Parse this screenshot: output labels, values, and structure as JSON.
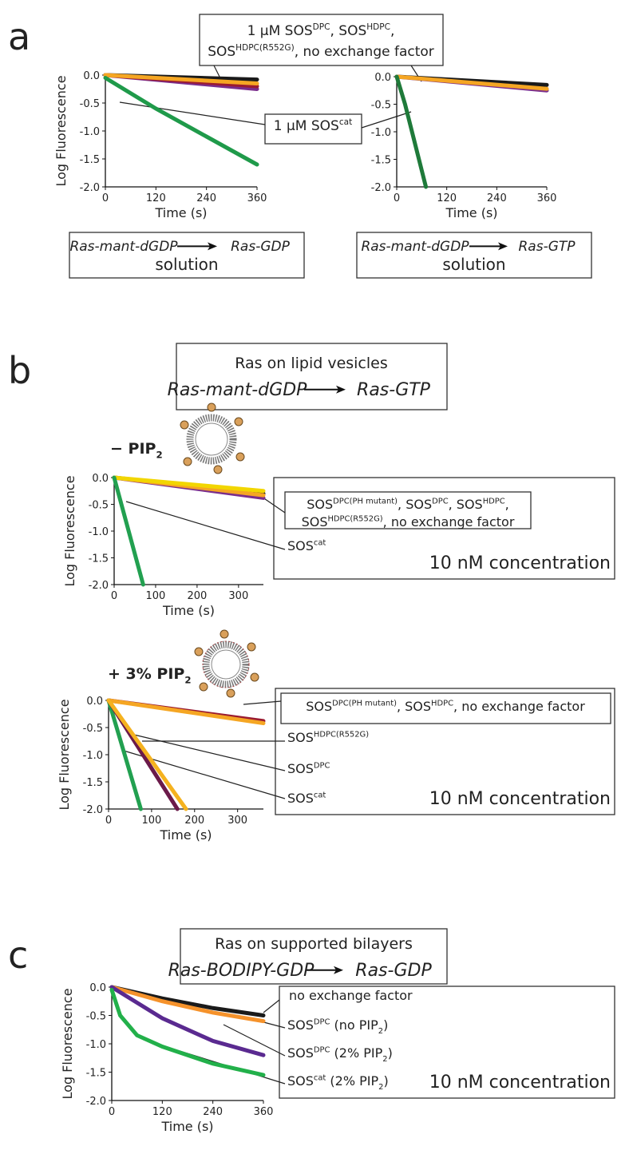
{
  "panel_labels": [
    "a",
    "b",
    "c"
  ],
  "reactions": [
    {
      "from": "Ras-mant-dGDP",
      "to": "Ras-GDP",
      "caption": "solution"
    },
    {
      "from": "Ras-mant-dGDP",
      "to": "Ras-GTP",
      "caption": "solution"
    },
    {
      "title": "Ras on lipid vesicles",
      "from": "Ras-mant-dGDP",
      "to": "Ras-GTP"
    },
    {
      "title": "Ras on supported bilayers",
      "from": "Ras-BODIPY-GDP",
      "to": "Ras-GDP"
    }
  ],
  "conditions": [
    [
      "− PIP",
      {
        "sub": "2"
      }
    ],
    [
      "+ 3% PIP",
      {
        "sub": "2"
      }
    ]
  ],
  "notes": [
    {
      "lines": [
        [
          "1 µM SOS",
          {
            "sup": "DPC"
          },
          ", SOS",
          {
            "sup": "HDPC"
          },
          ","
        ],
        [
          "SOS",
          {
            "sup": "HDPC(R552G)"
          },
          ", no exchange factor"
        ]
      ]
    },
    {
      "lines": [
        [
          "1 µM SOS",
          {
            "sup": "cat"
          }
        ]
      ]
    },
    {
      "lines": [
        [
          "SOS",
          {
            "sup": "DPC(PH mutant)"
          },
          ", SOS",
          {
            "sup": "DPC"
          },
          ", SOS",
          {
            "sup": "HDPC"
          },
          ","
        ],
        [
          "SOS",
          {
            "sup": "HDPC(R552G)"
          },
          ", no exchange factor"
        ]
      ]
    },
    {
      "lines": [
        [
          "SOS",
          {
            "sup": "cat"
          }
        ]
      ]
    },
    {
      "lines": [
        [
          "10 nM concentration"
        ]
      ]
    },
    {
      "lines": [
        [
          "SOS",
          {
            "sup": "DPC(PH mutant)"
          },
          ", SOS",
          {
            "sup": "HDPC"
          },
          ", no exchange factor"
        ]
      ]
    },
    {
      "lines": [
        [
          "SOS",
          {
            "sup": "HDPC(R552G)"
          }
        ]
      ]
    },
    {
      "lines": [
        [
          "SOS",
          {
            "sup": "DPC"
          }
        ]
      ]
    },
    {
      "lines": [
        [
          "SOS",
          {
            "sup": "cat"
          }
        ]
      ]
    },
    {
      "lines": [
        [
          "10 nM concentration"
        ]
      ]
    },
    {
      "lines": [
        [
          "no exchange factor"
        ]
      ]
    },
    {
      "lines": [
        [
          "SOS",
          {
            "sup": "DPC"
          },
          " (no PIP",
          {
            "sub": "2"
          },
          ")"
        ]
      ]
    },
    {
      "lines": [
        [
          "SOS",
          {
            "sup": "DPC"
          },
          " (2% PIP",
          {
            "sub": "2"
          },
          ")"
        ]
      ]
    },
    {
      "lines": [
        [
          "SOS",
          {
            "sup": "cat"
          },
          " (2% PIP",
          {
            "sub": "2"
          },
          ")"
        ]
      ]
    },
    {
      "lines": [
        [
          "10 nM concentration"
        ]
      ]
    }
  ],
  "chart_data": [
    {
      "type": "line",
      "x_label": "Time (s)",
      "y_label": "Log Fluorescence",
      "xlim": [
        0,
        360
      ],
      "ylim": [
        -2,
        0
      ],
      "xticks": [
        0,
        120,
        240,
        360
      ],
      "yticks": [
        {
          "value": 0,
          "label": "0.0"
        },
        {
          "value": -0.5,
          "label": "-0.5"
        },
        {
          "value": -1,
          "label": "-1.0"
        },
        {
          "value": -1.5,
          "label": "-1.5"
        },
        {
          "value": -2,
          "label": "-2.0"
        }
      ],
      "series": [
        {
          "color": "#1a1a1a",
          "x": [
            0,
            360
          ],
          "values": [
            0,
            -0.08
          ]
        },
        {
          "color": "#7a2d8c",
          "x": [
            0,
            360
          ],
          "values": [
            0,
            -0.25
          ]
        },
        {
          "color": "#9b1b30",
          "x": [
            0,
            360
          ],
          "values": [
            0,
            -0.2
          ]
        },
        {
          "color": "#f5a623",
          "x": [
            0,
            360
          ],
          "values": [
            0,
            -0.15
          ]
        },
        {
          "color": "#1f9a4a",
          "x": [
            0,
            120,
            240,
            360
          ],
          "values": [
            -0.05,
            -0.6,
            -1.1,
            -1.6
          ]
        }
      ]
    },
    {
      "type": "line",
      "x_label": "Time (s)",
      "xlim": [
        0,
        360
      ],
      "ylim": [
        -2,
        0
      ],
      "xticks": [
        0,
        120,
        240,
        360
      ],
      "yticks": [
        {
          "value": 0,
          "label": "0.0"
        },
        {
          "value": -0.5,
          "label": "-0.5"
        },
        {
          "value": -1,
          "label": "-1.0"
        },
        {
          "value": -1.5,
          "label": "-1.5"
        },
        {
          "value": -2,
          "label": "-2.0"
        }
      ],
      "series": [
        {
          "color": "#1a1a1a",
          "x": [
            0,
            360
          ],
          "values": [
            0,
            -0.15
          ]
        },
        {
          "color": "#7a2d8c",
          "x": [
            0,
            360
          ],
          "values": [
            0,
            -0.25
          ]
        },
        {
          "color": "#f5a623",
          "x": [
            0,
            360
          ],
          "values": [
            0,
            -0.22
          ]
        },
        {
          "color": "#1f7a3a",
          "x": [
            0,
            20,
            40,
            60,
            70
          ],
          "values": [
            0,
            -0.5,
            -1.1,
            -1.7,
            -2
          ]
        }
      ]
    },
    {
      "type": "line",
      "x_label": "Time (s)",
      "y_label": "Log Fluorescence",
      "xlim": [
        0,
        360
      ],
      "ylim": [
        -2,
        0
      ],
      "xticks": [
        0,
        100,
        200,
        300
      ],
      "yticks": [
        {
          "value": 0,
          "label": "0.0"
        },
        {
          "value": -0.5,
          "label": "-0.5"
        },
        {
          "value": -1,
          "label": "-1.0"
        },
        {
          "value": -1.5,
          "label": "-1.5"
        },
        {
          "value": -2,
          "label": "-2.0"
        }
      ],
      "series": [
        {
          "color": "#1a1a1a",
          "x": [
            0,
            360
          ],
          "values": [
            0,
            -0.3
          ]
        },
        {
          "color": "#7a2d8c",
          "x": [
            0,
            360
          ],
          "values": [
            0,
            -0.38
          ]
        },
        {
          "color": "#f5a623",
          "x": [
            0,
            360
          ],
          "values": [
            0,
            -0.33
          ]
        },
        {
          "color": "#f2d600",
          "x": [
            0,
            360
          ],
          "values": [
            0,
            -0.25
          ]
        },
        {
          "color": "#22a050",
          "x": [
            0,
            70
          ],
          "values": [
            0,
            -2
          ]
        }
      ]
    },
    {
      "type": "line",
      "x_label": "Time (s)",
      "y_label": "Log Fluorescence",
      "xlim": [
        0,
        360
      ],
      "ylim": [
        -2,
        0
      ],
      "xticks": [
        0,
        100,
        200,
        300
      ],
      "yticks": [
        {
          "value": 0,
          "label": "0.0"
        },
        {
          "value": -0.5,
          "label": "-0.5"
        },
        {
          "value": -1,
          "label": "-1.0"
        },
        {
          "value": -1.5,
          "label": "-1.5"
        },
        {
          "value": -2,
          "label": "-2.0"
        }
      ],
      "series": [
        {
          "color": "#9b1b30",
          "x": [
            0,
            360
          ],
          "values": [
            0,
            -0.38
          ]
        },
        {
          "color": "#f5a623",
          "x": [
            0,
            360
          ],
          "values": [
            0,
            -0.42
          ]
        },
        {
          "color": "#22a050",
          "x": [
            0,
            75
          ],
          "values": [
            0,
            -2
          ]
        },
        {
          "color": "#6b1a4a",
          "x": [
            0,
            160
          ],
          "values": [
            0,
            -2
          ]
        },
        {
          "color": "#f5b21f",
          "x": [
            0,
            180
          ],
          "values": [
            0,
            -2
          ]
        }
      ]
    },
    {
      "type": "line",
      "x_label": "Time (s)",
      "y_label": "Log Fluorescence",
      "xlim": [
        0,
        360
      ],
      "ylim": [
        -2,
        0
      ],
      "xticks": [
        0,
        120,
        240,
        360
      ],
      "yticks": [
        {
          "value": 0,
          "label": "0.0"
        },
        {
          "value": -0.5,
          "label": "-0.5"
        },
        {
          "value": -1,
          "label": "-1.0"
        },
        {
          "value": -1.5,
          "label": "-1.5"
        },
        {
          "value": -2,
          "label": "-2.0"
        }
      ],
      "series": [
        {
          "color": "#1a1a1a",
          "x": [
            0,
            120,
            240,
            360
          ],
          "values": [
            0,
            -0.2,
            -0.37,
            -0.5
          ]
        },
        {
          "color": "#f5922b",
          "x": [
            0,
            120,
            240,
            360
          ],
          "values": [
            0,
            -0.25,
            -0.45,
            -0.6
          ]
        },
        {
          "color": "#5a2a90",
          "x": [
            0,
            120,
            240,
            360
          ],
          "values": [
            0,
            -0.55,
            -0.95,
            -1.2
          ]
        },
        {
          "color": "#22b04a",
          "x": [
            0,
            20,
            60,
            120,
            240,
            360
          ],
          "values": [
            -0.05,
            -0.5,
            -0.85,
            -1.05,
            -1.35,
            -1.55
          ]
        }
      ]
    }
  ]
}
